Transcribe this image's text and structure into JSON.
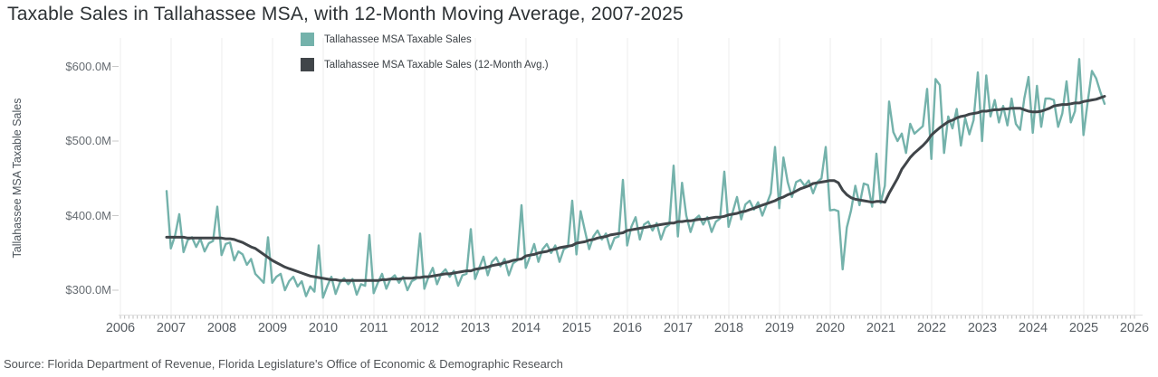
{
  "title": "Taxable Sales in Tallahassee MSA, with 12-Month Moving Average, 2007-2025",
  "source": "Source: Florida Department of Revenue, Florida Legislature's Office of Economic & Demographic Research",
  "y_axis_title": "Tallahassee MSA Taxable Sales",
  "colors": {
    "sales_line": "#74b2ab",
    "average_line": "#404549",
    "gridline": "#ededed",
    "axis_line": "#e0e0e0",
    "minor_tick": "#bcbcbc",
    "tick_dash": "#c9c9c9"
  },
  "legend": [
    {
      "label": "Tallahassee MSA Taxable Sales",
      "color": "#74b2ab"
    },
    {
      "label": "Tallahassee MSA Taxable Sales (12-Month Avg.)",
      "color": "#404549"
    }
  ],
  "chart_data": {
    "type": "line",
    "title": "Taxable Sales in Tallahassee MSA, with 12-Month Moving Average, 2007-2025",
    "xlabel": "",
    "ylabel": "Tallahassee MSA Taxable Sales",
    "units": "millions of USD",
    "x_unit": "month",
    "x_start": "2006-12",
    "x_end": "2025-06",
    "x_freq": "monthly",
    "x_tick_labels": [
      "2006",
      "2007",
      "2008",
      "2009",
      "2010",
      "2011",
      "2012",
      "2013",
      "2014",
      "2015",
      "2016",
      "2017",
      "2018",
      "2019",
      "2020",
      "2021",
      "2022",
      "2023",
      "2024",
      "2025",
      "2026"
    ],
    "y_tick_values": [
      300,
      400,
      500,
      600
    ],
    "y_tick_labels": [
      "$300.0M",
      "$400.0M",
      "$500.0M",
      "$600.0M"
    ],
    "ylim": [
      266,
      640
    ],
    "grid": "vertical-yearly",
    "legend_position": "top-center",
    "series": [
      {
        "name": "Tallahassee MSA Taxable Sales",
        "color": "#74b2ab",
        "values": [
          433,
          356,
          373,
          402,
          351,
          367,
          371,
          358,
          369,
          352,
          363,
          366,
          412,
          347,
          362,
          364,
          340,
          352,
          348,
          334,
          342,
          322,
          316,
          310,
          371,
          310,
          318,
          322,
          300,
          312,
          318,
          305,
          312,
          292,
          305,
          298,
          360,
          290,
          305,
          318,
          295,
          310,
          316,
          308,
          315,
          294,
          308,
          306,
          374,
          296,
          310,
          322,
          302,
          315,
          320,
          310,
          318,
          300,
          312,
          315,
          376,
          302,
          318,
          330,
          308,
          322,
          328,
          318,
          326,
          306,
          320,
          322,
          382,
          315,
          330,
          345,
          320,
          338,
          344,
          332,
          342,
          320,
          336,
          340,
          414,
          330,
          345,
          362,
          338,
          355,
          362,
          350,
          360,
          338,
          355,
          358,
          420,
          348,
          406,
          380,
          355,
          372,
          380,
          368,
          376,
          355,
          370,
          372,
          448,
          360,
          385,
          398,
          368,
          388,
          392,
          380,
          390,
          368,
          384,
          388,
          467,
          372,
          444,
          400,
          378,
          395,
          400,
          388,
          398,
          378,
          392,
          396,
          459,
          385,
          405,
          425,
          395,
          415,
          420,
          408,
          418,
          400,
          415,
          430,
          492,
          410,
          478,
          445,
          425,
          445,
          448,
          440,
          447,
          430,
          445,
          450,
          492,
          407,
          408,
          406,
          328,
          384,
          407,
          440,
          414,
          443,
          441,
          412,
          483,
          417,
          440,
          553,
          512,
          500,
          510,
          484,
          523,
          510,
          515,
          520,
          570,
          476,
          583,
          575,
          484,
          533,
          517,
          543,
          494,
          531,
          509,
          528,
          592,
          500,
          588,
          533,
          555,
          525,
          547,
          521,
          557,
          523,
          515,
          557,
          586,
          511,
          574,
          519,
          557,
          557,
          555,
          519,
          537,
          580,
          525,
          540,
          610,
          508,
          552,
          594,
          584,
          566,
          550
        ]
      },
      {
        "name": "Tallahassee MSA Taxable Sales (12-Month Avg.)",
        "color": "#404549",
        "values": [
          371,
          371,
          371,
          371,
          371,
          370,
          370,
          370,
          370,
          370,
          370,
          370,
          370,
          370,
          369,
          369,
          368,
          366,
          364,
          361,
          358,
          356,
          352,
          348,
          344,
          340,
          337,
          334,
          331,
          329,
          327,
          325,
          323,
          321,
          319,
          318,
          317,
          316,
          315,
          314,
          314,
          313,
          313,
          313,
          313,
          313,
          313,
          313,
          313,
          313,
          313,
          314,
          314,
          315,
          315,
          315,
          316,
          316,
          316,
          317,
          317,
          318,
          318,
          319,
          320,
          321,
          322,
          322,
          323,
          324,
          325,
          326,
          326,
          328,
          329,
          330,
          331,
          333,
          334,
          335,
          337,
          338,
          340,
          341,
          342,
          346,
          347,
          348,
          350,
          351,
          352,
          354,
          355,
          357,
          358,
          359,
          360,
          363,
          364,
          365,
          367,
          368,
          370,
          371,
          372,
          374,
          375,
          376,
          377,
          380,
          381,
          382,
          383,
          384,
          385,
          386,
          387,
          388,
          389,
          390,
          390,
          392,
          392,
          393,
          393,
          394,
          395,
          395,
          396,
          397,
          398,
          398,
          399,
          401,
          402,
          403,
          405,
          406,
          408,
          410,
          412,
          414,
          416,
          418,
          420,
          423,
          425,
          428,
          430,
          433,
          436,
          438,
          440,
          443,
          444,
          445,
          446,
          447,
          447,
          444,
          434,
          428,
          424,
          422,
          421,
          420,
          419,
          418,
          419,
          419,
          418,
          430,
          440,
          450,
          462,
          470,
          478,
          484,
          489,
          494,
          500,
          508,
          513,
          518,
          522,
          526,
          528,
          531,
          533,
          534,
          536,
          537,
          538,
          540,
          540,
          541,
          542,
          542,
          543,
          543,
          544,
          544,
          544,
          542,
          540,
          539,
          539,
          540,
          542,
          544,
          547,
          548,
          549,
          549,
          550,
          551,
          551,
          553,
          554,
          555,
          556,
          558,
          560
        ]
      }
    ]
  }
}
